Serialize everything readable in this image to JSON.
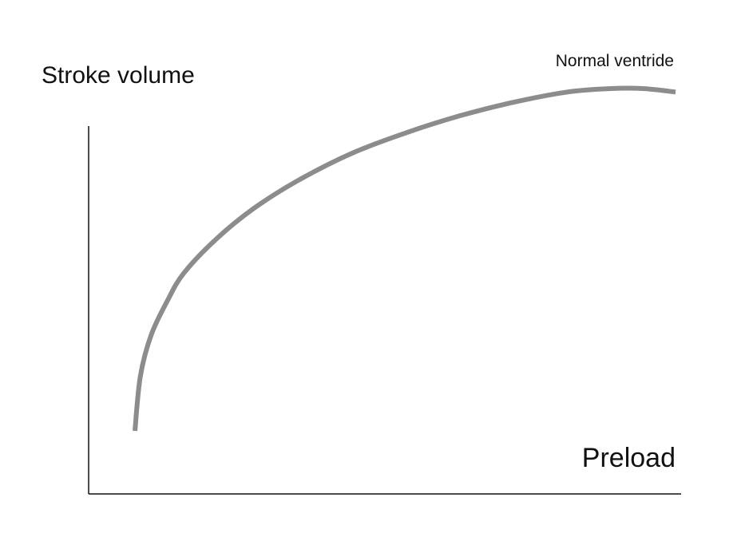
{
  "chart_data": {
    "type": "line",
    "title": "",
    "xlabel": "Preload",
    "ylabel": "Stroke volume",
    "xlim": [
      0,
      1
    ],
    "ylim": [
      0,
      1
    ],
    "grid": false,
    "legend": "none",
    "x_ticks": [],
    "y_ticks": [],
    "series": [
      {
        "name": "Normal ventride",
        "color": "#8c8c8c",
        "x": [
          0.0,
          0.01,
          0.03,
          0.06,
          0.09,
          0.15,
          0.22,
          0.3,
          0.4,
          0.5,
          0.6,
          0.7,
          0.8,
          0.88,
          0.94,
          1.0
        ],
        "y": [
          0.0,
          0.16,
          0.28,
          0.38,
          0.46,
          0.56,
          0.65,
          0.73,
          0.81,
          0.87,
          0.92,
          0.96,
          0.99,
          1.0,
          1.0,
          0.99
        ]
      }
    ]
  }
}
